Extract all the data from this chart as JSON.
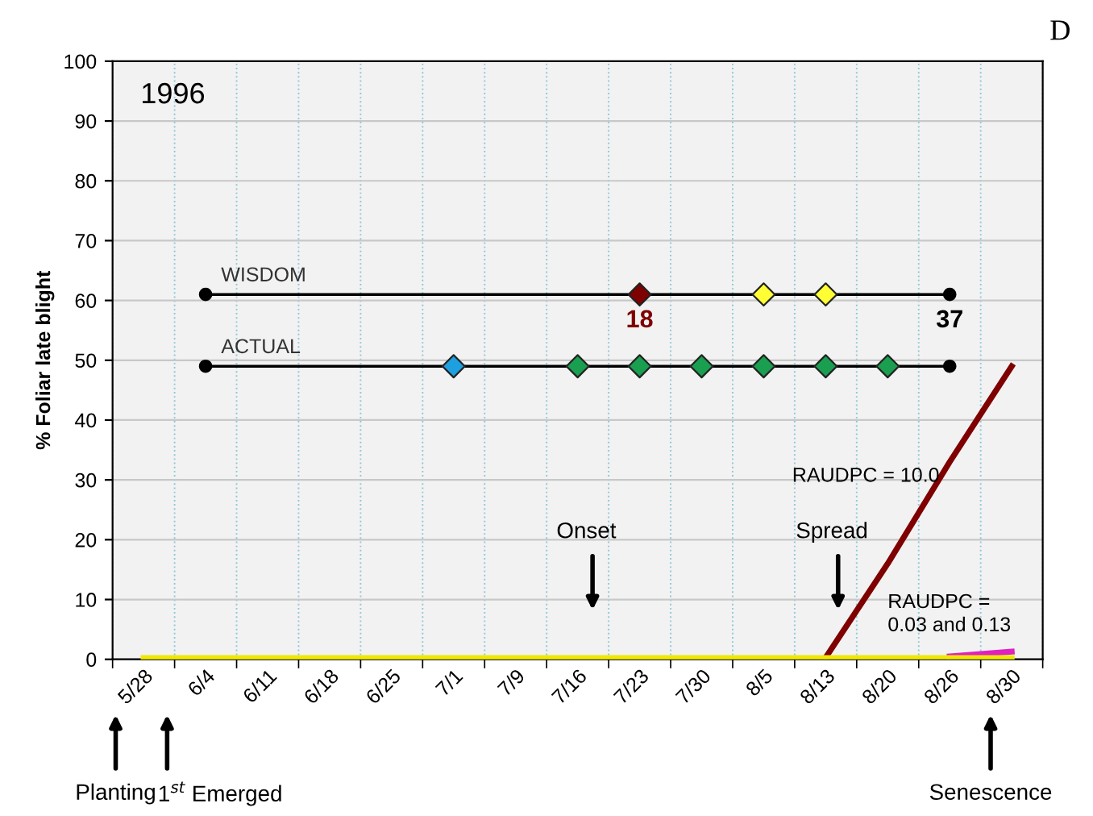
{
  "chart_data": {
    "type": "line",
    "title": "1996",
    "ylabel": "% Foliar late blight",
    "categories": [
      "5/28",
      "6/4",
      "6/11",
      "6/18",
      "6/25",
      "7/1",
      "7/9",
      "7/16",
      "7/23",
      "7/30",
      "8/5",
      "8/13",
      "8/20",
      "8/26",
      "8/30"
    ],
    "series": [
      {
        "color": "#7f0000",
        "values": [
          null,
          null,
          null,
          null,
          null,
          null,
          null,
          null,
          null,
          null,
          null,
          0.3,
          16,
          33,
          49
        ]
      },
      {
        "color": "#e020c0",
        "values": [
          null,
          null,
          null,
          null,
          null,
          null,
          null,
          null,
          null,
          null,
          null,
          null,
          null,
          0.5,
          1.3
        ]
      },
      {
        "color": "#f0e800",
        "values": [
          0.2,
          0.2,
          0.2,
          0.2,
          0.2,
          0.2,
          0.2,
          0.2,
          0.2,
          0.2,
          0.2,
          0.2,
          0.2,
          0.2,
          0.2
        ]
      },
      {
        "name": "WISDOM",
        "color": "#000000",
        "marker": "circle",
        "values": [
          null,
          61,
          null,
          null,
          null,
          null,
          null,
          null,
          null,
          null,
          null,
          null,
          null,
          61,
          null
        ]
      },
      {
        "type": "scatter",
        "marker": "diamond",
        "values": [
          null,
          null,
          null,
          null,
          null,
          null,
          null,
          null,
          61,
          null,
          61,
          61,
          null,
          null,
          null
        ],
        "colors": [
          null,
          null,
          null,
          null,
          null,
          null,
          null,
          null,
          "#7f0000",
          null,
          "#ffff33",
          "#ffff33",
          null,
          null,
          null
        ]
      },
      {
        "name": "ACTUAL",
        "color": "#000000",
        "marker": "circle",
        "values": [
          null,
          49,
          null,
          null,
          null,
          null,
          null,
          null,
          null,
          null,
          null,
          null,
          null,
          49,
          null
        ]
      },
      {
        "type": "scatter",
        "marker": "diamond",
        "values": [
          null,
          null,
          null,
          null,
          null,
          49,
          null,
          49,
          49,
          49,
          49,
          49,
          49,
          null,
          null
        ],
        "colors": [
          null,
          null,
          null,
          null,
          null,
          "#1ea0e0",
          null,
          "#1a9e50",
          "#1a9e50",
          "#1a9e50",
          "#1a9e50",
          "#1a9e50",
          "#1a9e50",
          null,
          null
        ]
      }
    ],
    "ylim": [
      0,
      100
    ],
    "yticks": [
      0,
      10,
      20,
      30,
      40,
      50,
      60,
      70,
      80,
      90,
      100
    ],
    "grid": true,
    "annotations": [
      "18",
      "37",
      "D",
      "RAUDPC = 10.0",
      "RAUDPC =\n0.03 and 0.13",
      "Onset",
      "Spread",
      "Planting",
      "1$^{st}$ Emerged",
      "Senescence"
    ]
  }
}
